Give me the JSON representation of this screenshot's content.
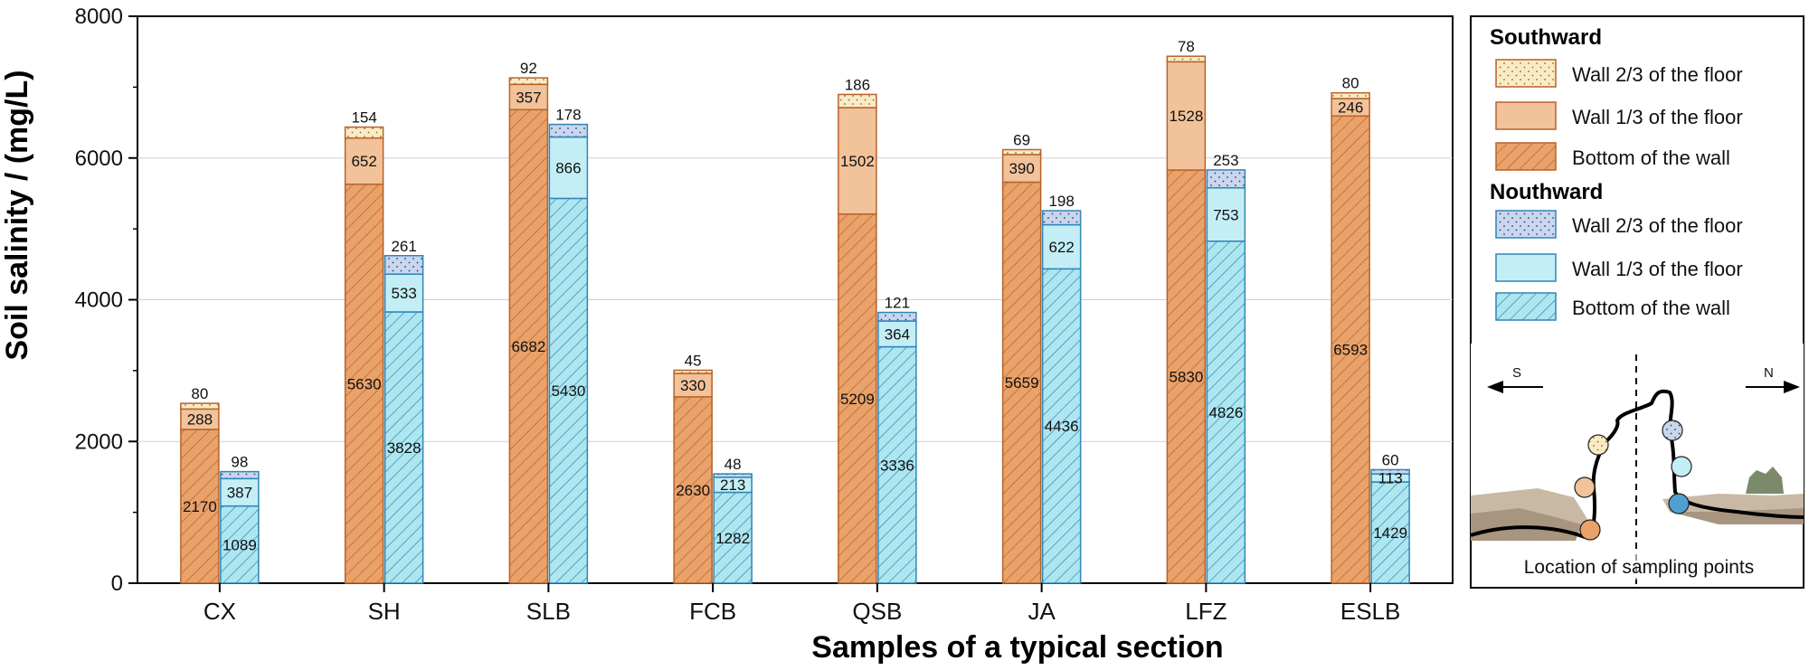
{
  "chart_data": {
    "type": "bar",
    "stacked": true,
    "grouped": true,
    "categories": [
      "CX",
      "SH",
      "SLB",
      "FCB",
      "QSB",
      "JA",
      "LFZ",
      "ESLB"
    ],
    "ylabel": "Soil salinity / (mg/L)",
    "xlabel": "Samples of a typical section",
    "ylim": [
      0,
      8000
    ],
    "yticks": [
      0,
      2000,
      4000,
      6000,
      8000
    ],
    "grid": true,
    "groups": [
      {
        "name": "Southward",
        "series": [
          {
            "name": "Bottom of the wall",
            "values": [
              2170,
              5630,
              6682,
              2630,
              5209,
              5659,
              5830,
              6593
            ]
          },
          {
            "name": "Wall 1/3 of  the floor",
            "values": [
              288,
              652,
              357,
              330,
              1502,
              390,
              1528,
              246
            ]
          },
          {
            "name": "Wall 2/3 of the floor",
            "values": [
              80,
              154,
              92,
              45,
              186,
              69,
              78,
              80
            ]
          }
        ]
      },
      {
        "name": "Nouthward",
        "series": [
          {
            "name": "Bottom of the wall",
            "values": [
              1089,
              3828,
              5430,
              1282,
              3336,
              4436,
              4826,
              1429
            ]
          },
          {
            "name": "Wall 1/3 of  the floor",
            "values": [
              387,
              533,
              866,
              213,
              364,
              622,
              753,
              113
            ]
          },
          {
            "name": "Wall 2/3 of the floor",
            "values": [
              98,
              261,
              178,
              48,
              121,
              198,
              253,
              60
            ]
          }
        ]
      }
    ],
    "legend": {
      "south_head": "Southward",
      "north_head": "Nouthward",
      "wall23": "Wall 2/3 of the floor",
      "wall13": "Wall 1/3 of  the floor",
      "bottom": "Bottom of the wall",
      "placement": "right"
    },
    "inset": {
      "caption": "Location of sampling points",
      "left_dir": "S",
      "right_dir": "N"
    }
  },
  "colors": {
    "south_bottom": "#E9A26A",
    "south_bottom_hatch": "#B8622A",
    "south_mid": "#F2C29A",
    "south_top": "#FBEBC4",
    "south_edge": "#B8622A",
    "north_bottom": "#AEE6F0",
    "north_bottom_hatch": "#2F86B8",
    "north_mid": "#C4EEF5",
    "north_top": "#C9D6EE",
    "north_edge": "#2F86B8"
  }
}
